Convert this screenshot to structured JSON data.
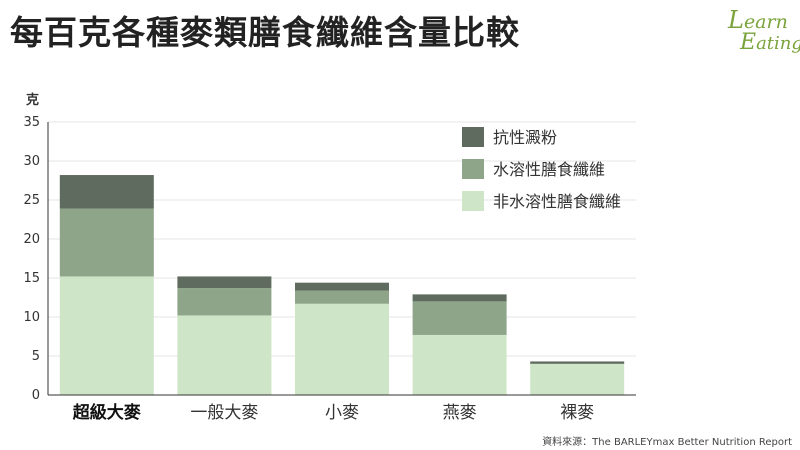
{
  "title": "每百克各種麥類膳食纖維含量比較",
  "logo": {
    "line1": "Learn",
    "line2": "Eating"
  },
  "source": "資料來源：The BARLEYmax Better Nutrition Report",
  "colors": {
    "resistant_starch": "#5f6b5e",
    "soluble_fiber": "#8ea58a",
    "insoluble_fiber": "#cfe5c7",
    "logo": "#7aa33c",
    "grid": "#e6e6e6",
    "axis": "#333333"
  },
  "chart_data": {
    "type": "bar",
    "stacked": true,
    "ylabel": "克",
    "ylim": [
      0,
      35
    ],
    "yticks": [
      0,
      5,
      10,
      15,
      20,
      25,
      30,
      35
    ],
    "grid": true,
    "legend_position": "top-right",
    "categories": [
      "超級大麥",
      "一般大麥",
      "小麥",
      "燕麥",
      "裸麥"
    ],
    "highlight_category": "超級大麥",
    "series": [
      {
        "name": "非水溶性膳食纖維",
        "color": "#cfe5c7",
        "values": [
          15.2,
          10.2,
          11.7,
          7.7,
          4.0
        ]
      },
      {
        "name": "水溶性膳食纖維",
        "color": "#8ea58a",
        "values": [
          8.7,
          3.5,
          1.7,
          4.3,
          0.0
        ]
      },
      {
        "name": "抗性澱粉",
        "color": "#5f6b5e",
        "values": [
          4.3,
          1.5,
          1.0,
          0.9,
          0.3
        ]
      }
    ],
    "legend_order": [
      "抗性澱粉",
      "水溶性膳食纖維",
      "非水溶性膳食纖維"
    ]
  }
}
